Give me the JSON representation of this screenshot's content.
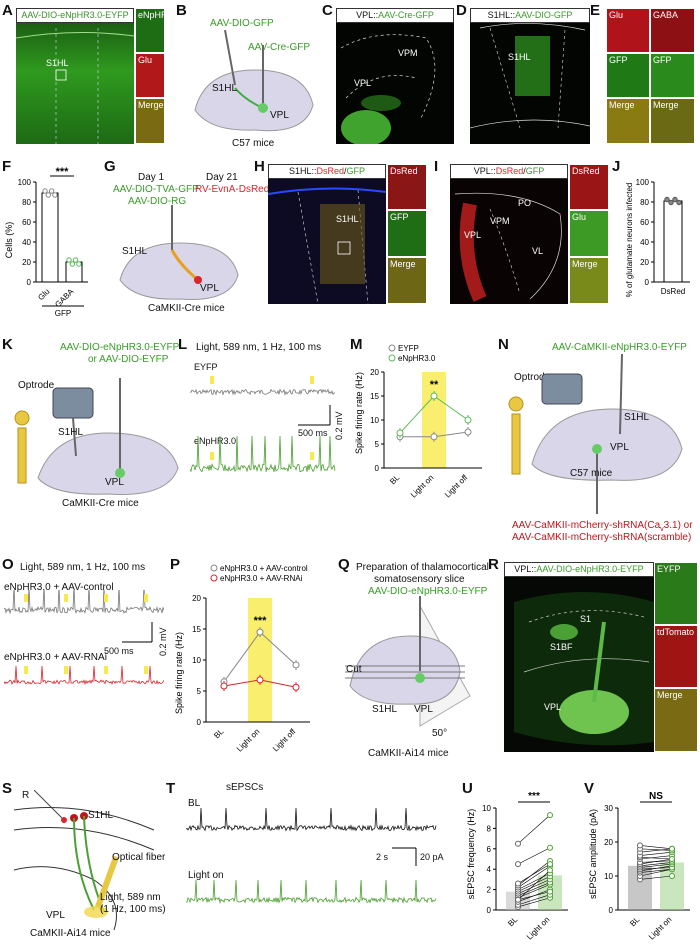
{
  "colors": {
    "green": "#5cb85c",
    "red": "#d9262c",
    "yellow": "#f7ea4a",
    "grey": "#888888"
  },
  "panels": {
    "A": {
      "letter": "A",
      "title": "AAV-DIO-eNpHR3.0-EYFP",
      "region": "S1HL",
      "tiles": [
        "eNpHR",
        "Glu",
        "Merge"
      ]
    },
    "B": {
      "letter": "B",
      "virus1": "AAV-DIO-GFP",
      "virus2": "AAV-Cre-GFP",
      "region1": "S1HL",
      "region2": "VPL",
      "mice": "C57 mice"
    },
    "C": {
      "letter": "C",
      "title_pre": "VPL::",
      "title_virus": "AAV-Cre-GFP",
      "region1": "VPM",
      "region2": "VPL"
    },
    "D": {
      "letter": "D",
      "title_pre": "S1HL::",
      "title_virus": "AAV-DIO-GFP",
      "region": "S1HL"
    },
    "E": {
      "letter": "E",
      "tiles": [
        "Glu",
        "GABA",
        "GFP",
        "GFP",
        "Merge",
        "Merge"
      ]
    },
    "F": {
      "letter": "F",
      "ylabel": "Cells (%)",
      "yticks": [
        "0",
        "20",
        "40",
        "60",
        "80",
        "100"
      ],
      "categories": [
        "Glu",
        "GABA"
      ],
      "group": "GFP",
      "sig": "***"
    },
    "G": {
      "letter": "G",
      "day1": "Day 1",
      "day21": "Day 21",
      "virus1": "AAV-DIO-TVA-GFP",
      "virus2": "AAV-DIO-RG",
      "virus3": "RV-EvnA-DsRed",
      "region1": "S1HL",
      "region2": "VPL",
      "mice": "CaMKII-Cre mice"
    },
    "H": {
      "letter": "H",
      "title_pre": "S1HL::",
      "title_red": "DsRed",
      "title_slash": "/",
      "title_green": "GFP",
      "region": "S1HL",
      "tiles": [
        "DsRed",
        "GFP",
        "Merge"
      ]
    },
    "I": {
      "letter": "I",
      "title_pre": "VPL::",
      "title_red": "DsRed",
      "title_slash": "/",
      "title_green": "GFP",
      "regions": [
        "PO",
        "VPM",
        "VPL",
        "VL"
      ],
      "tiles": [
        "DsRed",
        "Glu",
        "Merge"
      ]
    },
    "J": {
      "letter": "J",
      "ylabel": "% of glutamate neurons infected",
      "yticks": [
        "0",
        "20",
        "40",
        "60",
        "80",
        "100"
      ],
      "category": "DsRed"
    },
    "K": {
      "letter": "K",
      "virus1": "AAV-DIO-eNpHR3.0-EYFP",
      "virus2": "or AAV-DIO-EYFP",
      "optrode": "Optrode",
      "region1": "S1HL",
      "region2": "VPL",
      "mice": "CaMKII-Cre mice"
    },
    "L": {
      "letter": "L",
      "light": "Light, 589 nm, 1 Hz, 100 ms",
      "trace1": "EYFP",
      "trace2": "eNpHR3.0",
      "scale_t": "500 ms",
      "scale_v": "0.2 mV"
    },
    "M": {
      "letter": "M",
      "ylabel": "Spike firing rate (Hz)",
      "yticks": [
        "0",
        "5",
        "10",
        "15",
        "20"
      ],
      "xcats": [
        "BL",
        "Light on",
        "Light off"
      ],
      "legend1": "EYFP",
      "legend2": "eNpHR3.0",
      "sig": "**"
    },
    "N": {
      "letter": "N",
      "virus": "AAV-CaMKII-eNpHR3.0-EYFP",
      "optrode": "Optrode",
      "region1": "S1HL",
      "region2": "VPL",
      "mice": "C57 mice",
      "shrna1": "AAV-CaMKII-mCherry-shRNA(Ca",
      "shrna1_sub": "v",
      "shrna1_end": "3.1) or",
      "shrna2": "AAV-CaMKII-mCherry-shRNA(scramble)"
    },
    "O": {
      "letter": "O",
      "light": "Light, 589 nm, 1 Hz, 100 ms",
      "trace1": "eNpHR3.0 + AAV-control",
      "trace2": "eNpHR3.0 + AAV-RNAi",
      "scale_t": "500 ms",
      "scale_v": "0.2 mV"
    },
    "P": {
      "letter": "P",
      "ylabel": "Spike firing rate (Hz)",
      "yticks": [
        "0",
        "5",
        "10",
        "15",
        "20"
      ],
      "xcats": [
        "BL",
        "Light on",
        "Light off"
      ],
      "legend1": "eNpHR3.0 + AAV-control",
      "legend2": "eNpHR3.0 + AAV-RNAi",
      "sig": "***"
    },
    "Q": {
      "letter": "Q",
      "title1": "Preparation of thalamocortical",
      "title2": "somatosensory slice",
      "virus": "AAV-DIO-eNpHR3.0-EYFP",
      "cut": "Cut",
      "region1": "S1HL",
      "region2": "VPL",
      "angle": "50°",
      "mice": "CaMKII-Ai14 mice"
    },
    "R": {
      "letter": "R",
      "title_pre": "VPL::",
      "title_virus": "AAV-DIO-eNpHR3.0-EYFP",
      "regions": [
        "S1",
        "S1BF",
        "VPL"
      ],
      "tiles": [
        "EYFP",
        "tdTomato",
        "Merge"
      ]
    },
    "S": {
      "letter": "S",
      "r": "R",
      "region1": "S1HL",
      "fiber": "Optical fiber",
      "light1": "Light, 589 nm",
      "light2": "(1 Hz, 100 ms)",
      "region2": "VPL",
      "mice": "CaMKII-Ai14 mice"
    },
    "T": {
      "letter": "T",
      "title": "sEPSCs",
      "trace1": "BL",
      "trace2": "Light on",
      "scale_t": "2 s",
      "scale_i": "20 pA"
    },
    "U": {
      "letter": "U",
      "ylabel": "sEPSC frequency (Hz)",
      "yticks": [
        "0",
        "2",
        "4",
        "6",
        "8",
        "10"
      ],
      "xcats": [
        "BL",
        "Light on"
      ],
      "sig": "***"
    },
    "V": {
      "letter": "V",
      "ylabel": "sEPSC amplitude (pA)",
      "yticks": [
        "0",
        "10",
        "20",
        "30"
      ],
      "xcats": [
        "BL",
        "Light on"
      ],
      "sig": "NS"
    }
  },
  "chart_data": [
    {
      "type": "bar",
      "panel": "F",
      "categories": [
        "Glu",
        "GABA"
      ],
      "values": [
        89,
        20
      ],
      "ylabel": "Cells (%)",
      "ylim": [
        0,
        100
      ]
    },
    {
      "type": "bar",
      "panel": "J",
      "categories": [
        "DsRed"
      ],
      "values": [
        81
      ],
      "ylabel": "% of glutamate neurons infected",
      "ylim": [
        0,
        100
      ]
    },
    {
      "type": "line",
      "panel": "M",
      "categories": [
        "BL",
        "Light on",
        "Light off"
      ],
      "ylim": [
        0,
        20
      ],
      "series": [
        {
          "name": "EYFP",
          "values": [
            6.5,
            6.5,
            7.5
          ]
        },
        {
          "name": "eNpHR3.0",
          "values": [
            7.3,
            15,
            10
          ]
        }
      ]
    },
    {
      "type": "line",
      "panel": "P",
      "categories": [
        "BL",
        "Light on",
        "Light off"
      ],
      "ylim": [
        0,
        20
      ],
      "series": [
        {
          "name": "eNpHR3.0 + AAV-control",
          "values": [
            6.5,
            14.5,
            9.2
          ]
        },
        {
          "name": "eNpHR3.0 + AAV-RNAi",
          "values": [
            5.8,
            6.8,
            5.6
          ]
        }
      ]
    },
    {
      "type": "bar",
      "panel": "U",
      "categories": [
        "BL",
        "Light on"
      ],
      "values": [
        1.8,
        3.4
      ],
      "ylabel": "sEPSC frequency (Hz)",
      "ylim": [
        0,
        10
      ],
      "pairs": [
        [
          0.3,
          1.2
        ],
        [
          0.5,
          1.5
        ],
        [
          0.8,
          2.0
        ],
        [
          1.0,
          1.8
        ],
        [
          1.2,
          2.5
        ],
        [
          1.4,
          2.7
        ],
        [
          1.6,
          3.0
        ],
        [
          1.8,
          3.3
        ],
        [
          2.0,
          3.6
        ],
        [
          2.2,
          4.3
        ],
        [
          2.4,
          4.8
        ],
        [
          2.6,
          4.5
        ],
        [
          1.0,
          3.9
        ],
        [
          4.5,
          6.1
        ],
        [
          6.5,
          9.3
        ]
      ]
    },
    {
      "type": "bar",
      "panel": "V",
      "categories": [
        "BL",
        "Light on"
      ],
      "values": [
        13,
        14
      ],
      "ylabel": "sEPSC amplitude (pA)",
      "ylim": [
        0,
        30
      ],
      "pairs": [
        [
          9,
          10
        ],
        [
          10,
          12
        ],
        [
          11,
          12
        ],
        [
          11.5,
          13
        ],
        [
          12,
          12.5
        ],
        [
          12.5,
          13.5
        ],
        [
          13,
          14
        ],
        [
          13.5,
          15
        ],
        [
          14,
          14.5
        ],
        [
          15,
          16
        ],
        [
          15.5,
          15
        ],
        [
          16,
          17
        ],
        [
          17,
          18
        ],
        [
          18,
          17.5
        ],
        [
          19,
          18
        ]
      ]
    }
  ]
}
